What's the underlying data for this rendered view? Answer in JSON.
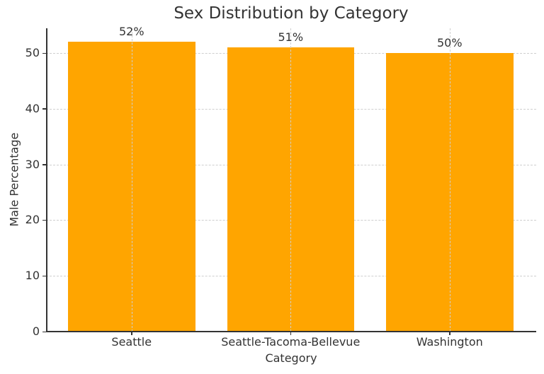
{
  "chart_data": {
    "type": "bar",
    "title": "Sex Distribution by Category",
    "xlabel": "Category",
    "ylabel": "Male Percentage",
    "categories": [
      "Seattle",
      "Seattle-Tacoma-Bellevue",
      "Washington"
    ],
    "values": [
      52,
      51,
      50
    ],
    "data_labels": [
      "52%",
      "51%",
      "50%"
    ],
    "ylim": [
      0,
      54.6
    ],
    "yticks": [
      0,
      10,
      20,
      30,
      40,
      50
    ],
    "grid": true,
    "bar_color": "#ffa500",
    "legend": null
  }
}
